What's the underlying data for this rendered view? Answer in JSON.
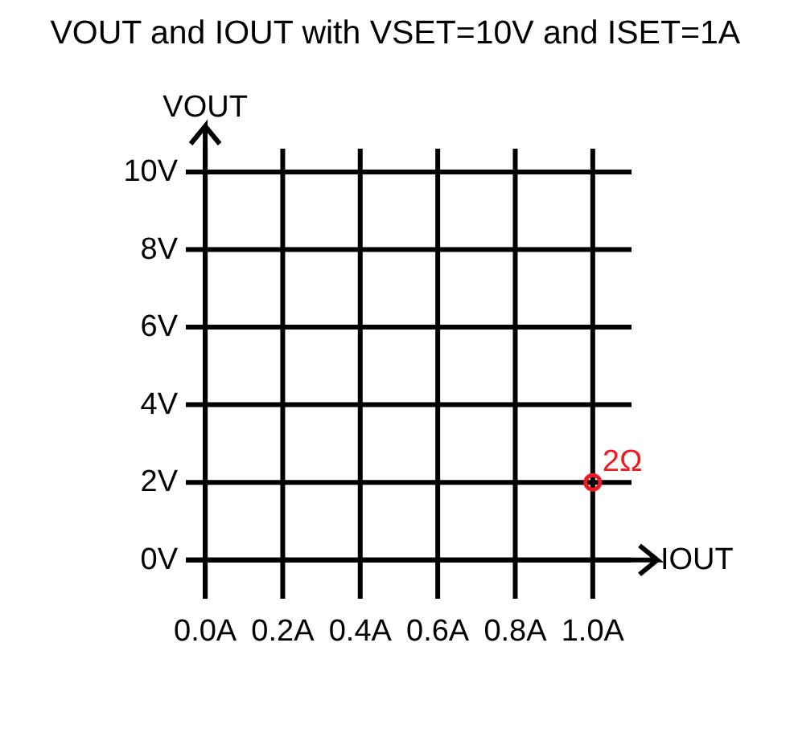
{
  "chart_data": {
    "type": "scatter",
    "title": "VOUT and IOUT with VSET=10V and ISET=1A",
    "xlabel": "IOUT",
    "ylabel": "VOUT",
    "xlim": [
      -0.05,
      1.1
    ],
    "ylim": [
      -1,
      10.6
    ],
    "xticks": [
      {
        "value": 0,
        "label": "0.0A"
      },
      {
        "value": 0.2,
        "label": "0.2A"
      },
      {
        "value": 0.4,
        "label": "0.4A"
      },
      {
        "value": 0.6,
        "label": "0.6A"
      },
      {
        "value": 0.8,
        "label": "0.8A"
      },
      {
        "value": 1.0,
        "label": "1.0A"
      }
    ],
    "yticks": [
      {
        "value": 0,
        "label": "0V"
      },
      {
        "value": 2,
        "label": "2V"
      },
      {
        "value": 4,
        "label": "4V"
      },
      {
        "value": 6,
        "label": "6V"
      },
      {
        "value": 8,
        "label": "8V"
      },
      {
        "value": 10,
        "label": "10V"
      }
    ],
    "grid": true,
    "marker": "circle",
    "series": [
      {
        "name": "2Ω",
        "color": "#ed1c24",
        "x": [
          1.0
        ],
        "values": [
          2
        ]
      }
    ]
  }
}
